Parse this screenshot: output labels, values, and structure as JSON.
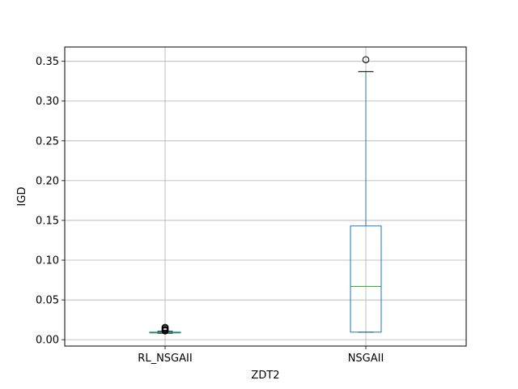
{
  "chart_data": {
    "type": "box",
    "title": "",
    "xlabel": "ZDT2",
    "ylabel": "IGD",
    "ylim": [
      -0.008,
      0.368
    ],
    "yticks": [
      0.0,
      0.05,
      0.1,
      0.15,
      0.2,
      0.25,
      0.3,
      0.35
    ],
    "ytick_labels": [
      "0.00",
      "0.05",
      "0.10",
      "0.15",
      "0.20",
      "0.25",
      "0.30",
      "0.35"
    ],
    "grid": true,
    "categories": [
      "RL_NSGAII",
      "NSGAII"
    ],
    "boxes": [
      {
        "name": "RL_NSGAII",
        "whisker_low": 0.008,
        "q1": 0.0085,
        "median": 0.009,
        "q3": 0.0095,
        "whisker_high": 0.0105,
        "outliers": [
          0.011,
          0.012,
          0.013,
          0.0145,
          0.0155
        ]
      },
      {
        "name": "NSGAII",
        "whisker_low": 0.0095,
        "q1": 0.0095,
        "median": 0.067,
        "q3": 0.143,
        "whisker_high": 0.337,
        "outliers": [
          0.352
        ]
      }
    ],
    "colors": {
      "box": "#1f77b4",
      "median": "#2ca02c",
      "grid": "#b0b0b0",
      "axis": "#000000",
      "outlier": "#000000"
    }
  }
}
